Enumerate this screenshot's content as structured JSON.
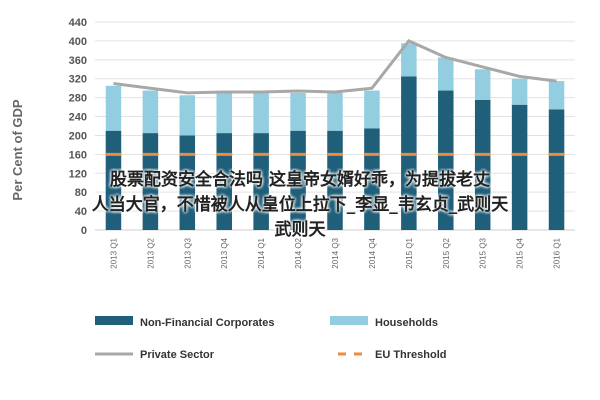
{
  "chart_data": {
    "type": "bar",
    "ylabel": "Per Cent of GDP",
    "ylim": [
      0,
      440
    ],
    "yticks": [
      0,
      40,
      80,
      120,
      160,
      200,
      240,
      280,
      320,
      360,
      400,
      440
    ],
    "categories": [
      "2013 Q1",
      "2013 Q2",
      "2013 Q3",
      "2013 Q4",
      "2014 Q1",
      "2014 Q2",
      "2014 Q3",
      "2014 Q4",
      "2015 Q1",
      "2015 Q2",
      "2015 Q3",
      "2015 Q4",
      "2016 Q1"
    ],
    "series": [
      {
        "name": "Non-Financial Corporates",
        "kind": "bar",
        "color": "#1f5f7a",
        "values": [
          210,
          205,
          200,
          205,
          205,
          210,
          210,
          215,
          325,
          295,
          275,
          265,
          255
        ]
      },
      {
        "name": "Households",
        "kind": "bar",
        "color": "#92cde0",
        "values": [
          95,
          90,
          85,
          85,
          85,
          80,
          80,
          80,
          70,
          70,
          65,
          55,
          60
        ]
      },
      {
        "name": "Private Sector",
        "kind": "line",
        "color": "#a8a8a8",
        "values": [
          310,
          300,
          290,
          292,
          292,
          294,
          292,
          300,
          400,
          365,
          345,
          325,
          315
        ]
      },
      {
        "name": "EU Threshold",
        "kind": "line",
        "dash": true,
        "color": "#f08a3c",
        "values": [
          160,
          160,
          160,
          160,
          160,
          160,
          160,
          160,
          160,
          160,
          160,
          160,
          160
        ]
      }
    ],
    "grid": true,
    "legend": "bottom"
  },
  "overlay": {
    "line1": "股票配资安全合法吗 这皇帝女婿好乖，为提拔老丈",
    "line2": "人当大官，不惜被人从皇位上拉下_李显_韦玄贞_武则天",
    "line3": "武则天"
  }
}
